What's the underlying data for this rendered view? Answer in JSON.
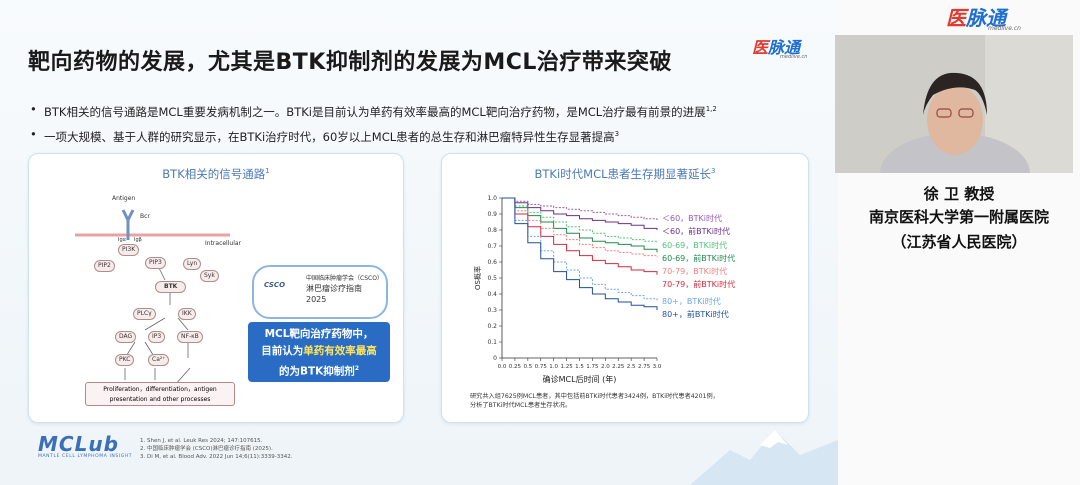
{
  "slide": {
    "title": "靶向药物的发展，尤其是BTK抑制剂的发展为MCL治疗带来突破",
    "bullets": [
      {
        "text": "BTK相关的信号通路是MCL重要发病机制之一。BTKi是目前认为单药有效率最高的MCL靶向治疗药物，是MCL治疗最有前景的进展",
        "sup": "1,2"
      },
      {
        "text": "一项大规模、基于人群的研究显示，在BTKi治疗时代，60岁以上MCL患者的总生存和淋巴瘤特异性生存显著提高",
        "sup": "3"
      }
    ],
    "left_panel": {
      "title": "BTK相关的信号通路",
      "title_sup": "1",
      "pathway": {
        "antigen": "Antigen",
        "bcr": "Bcr",
        "igm": "Igα",
        "igb": "Igβ",
        "intracellular": "Intracellular",
        "pi3k": "PI3K",
        "pip2": "PIP2",
        "pip3": "PIP3",
        "lyn": "Lyn",
        "syk": "Syk",
        "btk": "BTK",
        "plcg": "PLCγ",
        "ikk": "IKK",
        "dag": "DAG",
        "ip3": "IP3",
        "nfkb": "NF-κB",
        "pkc": "PKC",
        "ca": "Ca²⁺",
        "outcome_1": "Proliferation，differentiation，antigen",
        "outcome_2": "presentation and other processes"
      },
      "csco": {
        "logo": "CSCO",
        "line1": "中国临床肿瘤学会（CSCO）",
        "line2": "淋巴瘤诊疗指南",
        "line3": "2025"
      },
      "highlight": {
        "line1": "MCL靶向治疗药物中，",
        "line2_pre": "目前认为",
        "line2_hl": "单药有效率最高",
        "line3": "的为BTK抑制剂",
        "line3_sup": "2"
      }
    },
    "right_panel": {
      "title": "BTKi时代MCL患者生存期显著延长",
      "title_sup": "3",
      "note_line1": "研究共入组7625例MCL患者，其中包括前BTKi时代患者3424例，BTKi时代患者4201例，",
      "note_line2": "分析了BTKi时代MCL患者生存状况。"
    },
    "references": [
      "1. Shen J, et al. Leuk Res 2024; 147:107615.",
      "2. 中国临床肿瘤学会 (CSCO)淋巴瘤诊疗指南 (2025).",
      "3. Di M, et al. Blood Adv. 2022 Jun 14;6(11):3339-3342."
    ],
    "logo_main": "MCLub",
    "logo_sub": "MANTLE CELL LYMPHOMA INSIGHT",
    "watermark_main": "医",
    "watermark_rest": "脉通",
    "watermark_sub": "medlive.cn"
  },
  "side": {
    "watermark_main": "医",
    "watermark_rest": "脉通",
    "watermark_sub": "medlive.cn",
    "presenter_name": "徐 卫 教授",
    "affiliation_1": "南京医科大学第一附属医院",
    "affiliation_2": "（江苏省人民医院）"
  },
  "chart_data": {
    "type": "line",
    "title": "BTKi时代MCL患者生存期显著延长",
    "xlabel": "确诊MCL后时间 (年)",
    "ylabel": "OS概率",
    "xlim": [
      0,
      3.0
    ],
    "ylim": [
      0,
      1.0
    ],
    "xticks": [
      "0.0",
      "0.25",
      "0.5",
      "0.75",
      "1.0",
      "1.25",
      "1.5",
      "1.75",
      "2.0",
      "2.25",
      "2.5",
      "2.75",
      "3.0"
    ],
    "yticks": [
      "0",
      "0.1",
      "0.2",
      "0.3",
      "0.4",
      "0.5",
      "0.6",
      "0.7",
      "0.8",
      "0.9",
      "1.0"
    ],
    "x": [
      0,
      0.25,
      0.5,
      0.75,
      1.0,
      1.25,
      1.5,
      1.75,
      2.0,
      2.25,
      2.5,
      2.75,
      3.0
    ],
    "series": [
      {
        "name": "＜60，BTKi时代",
        "color": "#9b59b6",
        "dashed": true,
        "values": [
          1.0,
          0.98,
          0.96,
          0.95,
          0.94,
          0.93,
          0.92,
          0.91,
          0.9,
          0.89,
          0.88,
          0.87,
          0.86
        ]
      },
      {
        "name": "＜60，前BTKi时代",
        "color": "#6c2e8a",
        "dashed": false,
        "values": [
          1.0,
          0.97,
          0.94,
          0.92,
          0.9,
          0.89,
          0.87,
          0.86,
          0.85,
          0.84,
          0.83,
          0.81,
          0.8
        ]
      },
      {
        "name": "60-69，BTKi时代",
        "color": "#52c07a",
        "dashed": true,
        "values": [
          1.0,
          0.95,
          0.91,
          0.88,
          0.85,
          0.82,
          0.8,
          0.78,
          0.76,
          0.75,
          0.74,
          0.73,
          0.72
        ]
      },
      {
        "name": "60-69，前BTKi时代",
        "color": "#1f8a4c",
        "dashed": false,
        "values": [
          1.0,
          0.94,
          0.89,
          0.85,
          0.81,
          0.78,
          0.75,
          0.73,
          0.72,
          0.71,
          0.7,
          0.68,
          0.66
        ]
      },
      {
        "name": "70-79，BTKi时代",
        "color": "#f08080",
        "dashed": true,
        "values": [
          1.0,
          0.92,
          0.86,
          0.81,
          0.77,
          0.74,
          0.71,
          0.69,
          0.67,
          0.66,
          0.65,
          0.64,
          0.63
        ]
      },
      {
        "name": "70-79，前BTKi时代",
        "color": "#d6283c",
        "dashed": false,
        "values": [
          1.0,
          0.9,
          0.82,
          0.76,
          0.71,
          0.67,
          0.64,
          0.61,
          0.59,
          0.57,
          0.55,
          0.54,
          0.52
        ]
      },
      {
        "name": "80+，BTKi时代",
        "color": "#6aa7e0",
        "dashed": true,
        "values": [
          1.0,
          0.86,
          0.76,
          0.67,
          0.6,
          0.55,
          0.5,
          0.46,
          0.43,
          0.41,
          0.39,
          0.37,
          0.36
        ]
      },
      {
        "name": "80+，前BTKi时代",
        "color": "#1f4e9c",
        "dashed": false,
        "values": [
          1.0,
          0.84,
          0.72,
          0.62,
          0.54,
          0.49,
          0.44,
          0.4,
          0.37,
          0.35,
          0.33,
          0.32,
          0.3
        ]
      }
    ]
  }
}
